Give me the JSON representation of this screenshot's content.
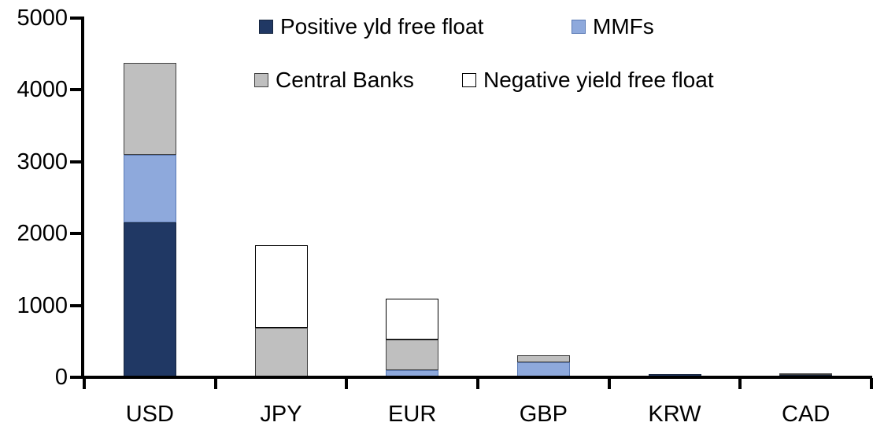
{
  "chart_data": {
    "type": "bar",
    "stacked": true,
    "title": "",
    "xlabel": "",
    "ylabel": "",
    "categories": [
      "USD",
      "JPY",
      "EUR",
      "GBP",
      "KRW",
      "CAD"
    ],
    "series": [
      {
        "name": "Positive yld free float",
        "color": "#203864",
        "border": "#17263f",
        "values": [
          2150,
          0,
          0,
          0,
          40,
          30
        ]
      },
      {
        "name": "MMFs",
        "color": "#8EA9DC",
        "border": "#5a7ab5",
        "values": [
          950,
          0,
          100,
          210,
          0,
          0
        ]
      },
      {
        "name": "Central Banks",
        "color": "#BFBFBF",
        "border": "#404040",
        "values": [
          1280,
          690,
          425,
          100,
          0,
          30
        ]
      },
      {
        "name": "Negative yield free float",
        "color": "#FFFFFF",
        "border": "#000000",
        "values": [
          0,
          1150,
          570,
          0,
          0,
          0
        ]
      }
    ],
    "ylim": [
      0,
      5000
    ],
    "yticks": [
      0,
      1000,
      2000,
      3000,
      4000,
      5000
    ],
    "grid": false,
    "legend_position": "top",
    "axis_color": "#000000",
    "text_color": "#000000"
  }
}
